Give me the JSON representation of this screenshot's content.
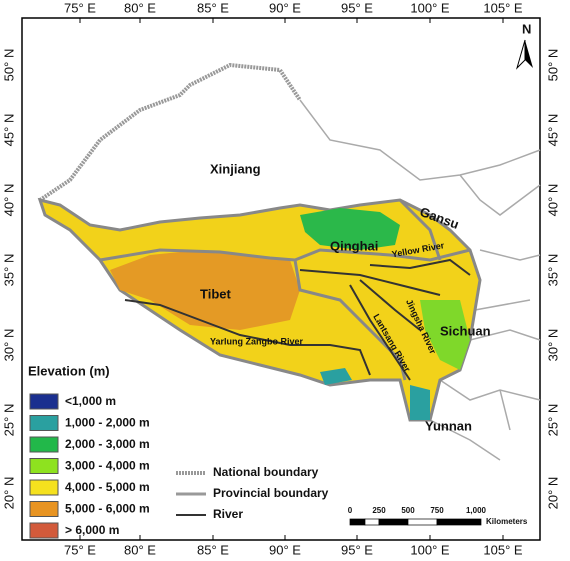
{
  "axes": {
    "lon": [
      "75° E",
      "80° E",
      "85° E",
      "90° E",
      "95° E",
      "100° E",
      "105° E"
    ],
    "lat": [
      "50° N",
      "45° N",
      "40° N",
      "35° N",
      "30° N",
      "25° N",
      "20° N"
    ]
  },
  "north": "N",
  "regions": [
    "Xinjiang",
    "Qinghai",
    "Gansu",
    "Tibet",
    "Sichuan",
    "Yunnan"
  ],
  "rivers": [
    "Yellow River",
    "Jingsha River",
    "Lantsang River",
    "Yarlung Zangbo River"
  ],
  "elevation_legend": {
    "title": "Elevation (m)",
    "classes": [
      "<1,000 m",
      "1,000 - 2,000 m",
      "2,000 - 3,000 m",
      "3,000 - 4,000 m",
      "4,000 - 5,000 m",
      "5,000 - 6,000 m",
      "> 6,000 m"
    ]
  },
  "line_legend": [
    "National boundary",
    "Provincial boundary",
    "River"
  ],
  "scale_bar": {
    "ticks": [
      "0",
      "250",
      "500",
      "750",
      "1,000"
    ],
    "unit": "Kilometers"
  }
}
